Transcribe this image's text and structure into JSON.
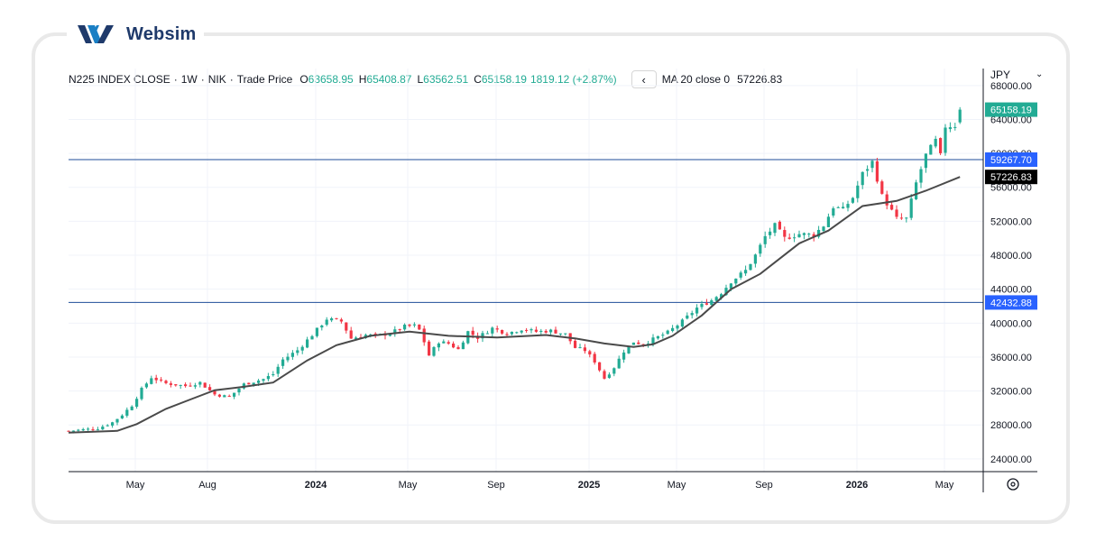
{
  "brand": {
    "name": "Websim"
  },
  "header": {
    "symbol": "N225 INDEX CLOSE",
    "interval": "1W",
    "exchange": "NIK",
    "price_type": "Trade Price",
    "open_label": "O",
    "open": "63658.95",
    "high_label": "H",
    "high": "65408.87",
    "low_label": "L",
    "low": "63562.51",
    "close_label": "C",
    "close": "65158.19",
    "change": "1819.12 (+2.87%)",
    "indicator_label": "MA 20 close 0",
    "indicator_value": "57226.83"
  },
  "currency": {
    "label": "JPY",
    "dropdown_icon": "chevron-down-icon"
  },
  "settings_icon": "gear-icon",
  "colors": {
    "up": "#22ab94",
    "down": "#f23645",
    "ma": "#4a4a4a",
    "hline": "#2962ff",
    "last_price_bg": "#22ab94",
    "ma_badge_bg": "#000000"
  },
  "chart_data": {
    "type": "candlestick",
    "interval": "1W",
    "ylim": [
      22500,
      70000
    ],
    "y_ticks": [
      "24000.00",
      "28000.00",
      "32000.00",
      "36000.00",
      "40000.00",
      "44000.00",
      "48000.00",
      "52000.00",
      "56000.00",
      "60000.00",
      "64000.00",
      "68000.00"
    ],
    "x_ticks": [
      {
        "label": "May",
        "bold": false
      },
      {
        "label": "Aug",
        "bold": false
      },
      {
        "label": "2024",
        "bold": true
      },
      {
        "label": "May",
        "bold": false
      },
      {
        "label": "Sep",
        "bold": false
      },
      {
        "label": "2025",
        "bold": true
      },
      {
        "label": "May",
        "bold": false
      },
      {
        "label": "Sep",
        "bold": false
      },
      {
        "label": "2026",
        "bold": true
      },
      {
        "label": "May",
        "bold": false
      }
    ],
    "horizontal_lines": [
      59267.7,
      42432.88
    ],
    "badges": {
      "last_price": "65158.19",
      "line_upper": "59267.70",
      "ma_value": "57226.83",
      "line_lower": "42432.88"
    },
    "anchors": [
      {
        "w": 0,
        "c": 27300
      },
      {
        "w": 6,
        "c": 27600
      },
      {
        "w": 9,
        "c": 28300
      },
      {
        "w": 11,
        "c": 29200
      },
      {
        "w": 13,
        "c": 30300
      },
      {
        "w": 15,
        "c": 32200
      },
      {
        "w": 17,
        "c": 33600
      },
      {
        "w": 20,
        "c": 32900
      },
      {
        "w": 24,
        "c": 32600
      },
      {
        "w": 27,
        "c": 33000
      },
      {
        "w": 30,
        "c": 31600
      },
      {
        "w": 33,
        "c": 31300
      },
      {
        "w": 36,
        "c": 32800
      },
      {
        "w": 40,
        "c": 33400
      },
      {
        "w": 42,
        "c": 34000
      },
      {
        "w": 44,
        "c": 35700
      },
      {
        "w": 47,
        "c": 36800
      },
      {
        "w": 50,
        "c": 38600
      },
      {
        "w": 53,
        "c": 40500
      },
      {
        "w": 56,
        "c": 40200
      },
      {
        "w": 58,
        "c": 38200
      },
      {
        "w": 61,
        "c": 38600
      },
      {
        "w": 63,
        "c": 38500
      },
      {
        "w": 66,
        "c": 38800
      },
      {
        "w": 69,
        "c": 39600
      },
      {
        "w": 71,
        "c": 39700
      },
      {
        "w": 72,
        "c": 39200
      },
      {
        "w": 73,
        "c": 37800
      },
      {
        "w": 74,
        "c": 36200
      },
      {
        "w": 76,
        "c": 37800
      },
      {
        "w": 78,
        "c": 37600
      },
      {
        "w": 80,
        "c": 36900
      },
      {
        "w": 82,
        "c": 39000
      },
      {
        "w": 84,
        "c": 38300
      },
      {
        "w": 87,
        "c": 39400
      },
      {
        "w": 90,
        "c": 38800
      },
      {
        "w": 93,
        "c": 39300
      },
      {
        "w": 96,
        "c": 39000
      },
      {
        "w": 99,
        "c": 39100
      },
      {
        "w": 102,
        "c": 38700
      },
      {
        "w": 104,
        "c": 37100
      },
      {
        "w": 106,
        "c": 36800
      },
      {
        "w": 108,
        "c": 35500
      },
      {
        "w": 110,
        "c": 33500
      },
      {
        "w": 112,
        "c": 34800
      },
      {
        "w": 114,
        "c": 36700
      },
      {
        "w": 116,
        "c": 37800
      },
      {
        "w": 118,
        "c": 37500
      },
      {
        "w": 120,
        "c": 38100
      },
      {
        "w": 123,
        "c": 38900
      },
      {
        "w": 126,
        "c": 40200
      },
      {
        "w": 129,
        "c": 41800
      },
      {
        "w": 132,
        "c": 42700
      },
      {
        "w": 134,
        "c": 43600
      },
      {
        "w": 136,
        "c": 44900
      },
      {
        "w": 139,
        "c": 46200
      },
      {
        "w": 141,
        "c": 48000
      },
      {
        "w": 143,
        "c": 50200
      },
      {
        "w": 145,
        "c": 51500
      },
      {
        "w": 147,
        "c": 50000
      },
      {
        "w": 150,
        "c": 50500
      },
      {
        "w": 153,
        "c": 50400
      },
      {
        "w": 155,
        "c": 51500
      },
      {
        "w": 157,
        "c": 53700
      },
      {
        "w": 159,
        "c": 53400
      },
      {
        "w": 161,
        "c": 54800
      },
      {
        "w": 163,
        "c": 57600
      },
      {
        "w": 165,
        "c": 59000
      },
      {
        "w": 167,
        "c": 55000
      },
      {
        "w": 168,
        "c": 54100
      },
      {
        "w": 170,
        "c": 52300
      },
      {
        "w": 172,
        "c": 52300
      },
      {
        "w": 174,
        "c": 56500
      },
      {
        "w": 176,
        "c": 59800
      },
      {
        "w": 178,
        "c": 61500
      },
      {
        "w": 179,
        "c": 59700
      },
      {
        "w": 180,
        "c": 63200
      },
      {
        "w": 182,
        "c": 63300
      },
      {
        "w": 183,
        "c": 65158
      }
    ],
    "ma_line": {
      "name": "MA 20 close 0",
      "points": [
        {
          "w": 0,
          "v": 27100
        },
        {
          "w": 10,
          "v": 27300
        },
        {
          "w": 14,
          "v": 28100
        },
        {
          "w": 20,
          "v": 29900
        },
        {
          "w": 25,
          "v": 31000
        },
        {
          "w": 30,
          "v": 32100
        },
        {
          "w": 36,
          "v": 32500
        },
        {
          "w": 42,
          "v": 33000
        },
        {
          "w": 49,
          "v": 35600
        },
        {
          "w": 55,
          "v": 37400
        },
        {
          "w": 62,
          "v": 38500
        },
        {
          "w": 70,
          "v": 39000
        },
        {
          "w": 78,
          "v": 38500
        },
        {
          "w": 88,
          "v": 38300
        },
        {
          "w": 98,
          "v": 38600
        },
        {
          "w": 104,
          "v": 38200
        },
        {
          "w": 110,
          "v": 37600
        },
        {
          "w": 116,
          "v": 37200
        },
        {
          "w": 120,
          "v": 37500
        },
        {
          "w": 124,
          "v": 38500
        },
        {
          "w": 130,
          "v": 40900
        },
        {
          "w": 136,
          "v": 44000
        },
        {
          "w": 142,
          "v": 45800
        },
        {
          "w": 150,
          "v": 49400
        },
        {
          "w": 156,
          "v": 50900
        },
        {
          "w": 163,
          "v": 53800
        },
        {
          "w": 170,
          "v": 54400
        },
        {
          "w": 176,
          "v": 55600
        },
        {
          "w": 183,
          "v": 57227
        }
      ]
    }
  }
}
